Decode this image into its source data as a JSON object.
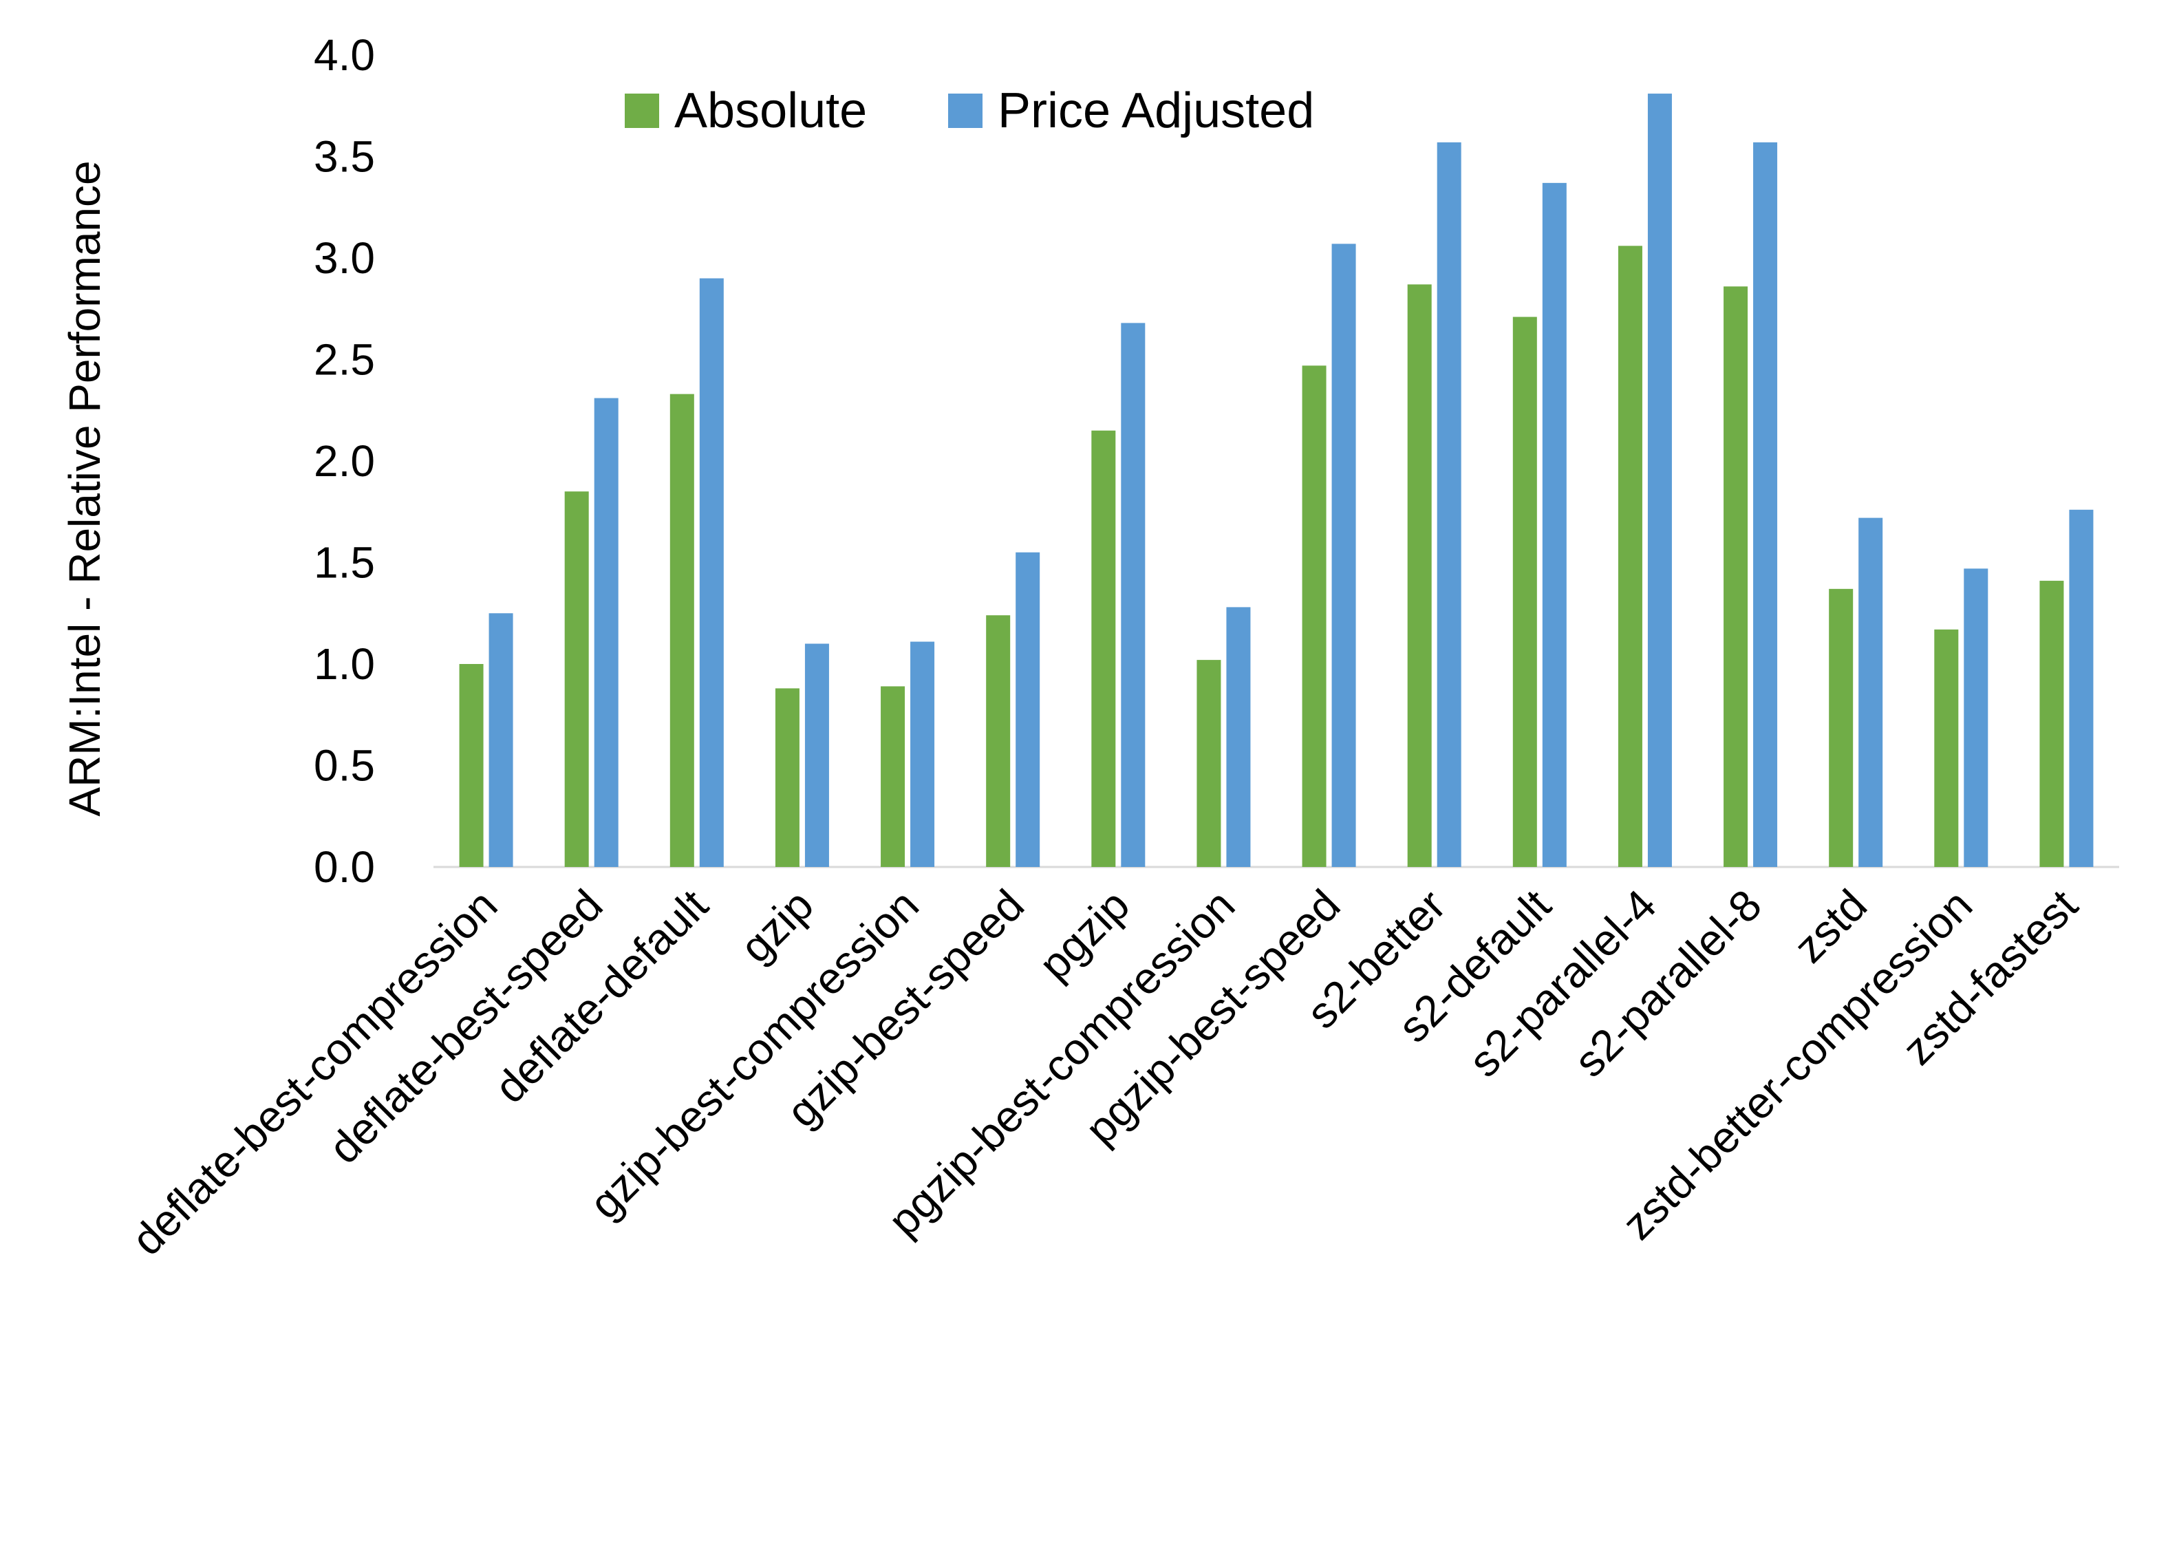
{
  "chart_data": {
    "type": "bar",
    "title": "",
    "xlabel": "",
    "ylabel": "ARM:Intel - Relative Performance",
    "ylim": [
      0,
      4.0
    ],
    "yticks": [
      "0.0",
      "0.5",
      "1.0",
      "1.5",
      "2.0",
      "2.5",
      "3.0",
      "3.5",
      "4.0"
    ],
    "grid": false,
    "legend_position": "top",
    "categories": [
      "deflate-best-compression",
      "deflate-best-speed",
      "deflate-default",
      "gzip",
      "gzip-best-compression",
      "gzip-best-speed",
      "pgzip",
      "pgzip-best-compression",
      "pgzip-best-speed",
      "s2-better",
      "s2-default",
      "s2-parallel-4",
      "s2-parallel-8",
      "zstd",
      "zstd-better-compression",
      "zstd-fastest"
    ],
    "series": [
      {
        "name": "Absolute",
        "color": "#70AD47",
        "values": [
          1.0,
          1.85,
          2.33,
          0.88,
          0.89,
          1.24,
          2.15,
          1.02,
          2.47,
          2.87,
          2.71,
          3.06,
          2.86,
          1.37,
          1.17,
          1.41
        ]
      },
      {
        "name": "Price Adjusted",
        "color": "#5B9BD5",
        "values": [
          1.25,
          2.31,
          2.9,
          1.1,
          1.11,
          1.55,
          2.68,
          1.28,
          3.07,
          3.57,
          3.37,
          3.81,
          3.57,
          1.72,
          1.47,
          1.76
        ]
      }
    ]
  }
}
